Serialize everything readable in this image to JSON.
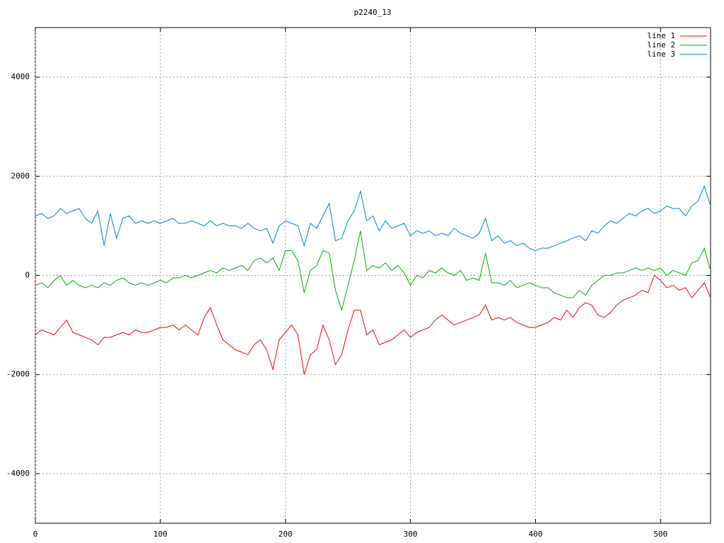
{
  "chart_data": {
    "type": "line",
    "title": "p2240_13",
    "x": [
      0,
      5,
      10,
      15,
      20,
      25,
      30,
      35,
      40,
      45,
      50,
      55,
      60,
      65,
      70,
      75,
      80,
      85,
      90,
      95,
      100,
      105,
      110,
      115,
      120,
      125,
      130,
      135,
      140,
      145,
      150,
      155,
      160,
      165,
      170,
      175,
      180,
      185,
      190,
      195,
      200,
      205,
      210,
      215,
      220,
      225,
      230,
      235,
      240,
      245,
      250,
      255,
      260,
      265,
      270,
      275,
      280,
      285,
      290,
      295,
      300,
      305,
      310,
      315,
      320,
      325,
      330,
      335,
      340,
      345,
      350,
      355,
      360,
      365,
      370,
      375,
      380,
      385,
      390,
      395,
      400,
      405,
      410,
      415,
      420,
      425,
      430,
      435,
      440,
      445,
      450,
      455,
      460,
      465,
      470,
      475,
      480,
      485,
      490,
      495,
      500,
      505,
      510,
      515,
      520,
      525,
      530,
      535,
      540
    ],
    "series": [
      {
        "name": "line 1",
        "color": "#ff0000",
        "values": [
          -1200,
          -1100,
          -1150,
          -1200,
          -1050,
          -900,
          -1150,
          -1200,
          -1250,
          -1300,
          -1400,
          -1250,
          -1250,
          -1200,
          -1150,
          -1200,
          -1100,
          -1150,
          -1150,
          -1100,
          -1050,
          -1050,
          -1000,
          -1100,
          -1000,
          -1100,
          -1200,
          -850,
          -650,
          -1000,
          -1300,
          -1400,
          -1500,
          -1550,
          -1600,
          -1400,
          -1300,
          -1500,
          -1900,
          -1300,
          -1150,
          -1000,
          -1200,
          -2000,
          -1600,
          -1500,
          -1000,
          -1300,
          -1800,
          -1600,
          -1100,
          -700,
          -700,
          -1200,
          -1100,
          -1400,
          -1350,
          -1300,
          -1200,
          -1100,
          -1250,
          -1150,
          -1100,
          -1050,
          -900,
          -800,
          -900,
          -1000,
          -950,
          -900,
          -850,
          -800,
          -600,
          -900,
          -850,
          -900,
          -850,
          -950,
          -1000,
          -1050,
          -1050,
          -1000,
          -950,
          -850,
          -900,
          -700,
          -850,
          -650,
          -550,
          -600,
          -800,
          -850,
          -750,
          -600,
          -500,
          -450,
          -400,
          -300,
          -350,
          0,
          -100,
          -250,
          -200,
          -300,
          -250,
          -450,
          -300,
          -150,
          -450
        ]
      },
      {
        "name": "line 2",
        "color": "#00b000",
        "values": [
          -200,
          -150,
          -250,
          -100,
          0,
          -200,
          -100,
          -200,
          -250,
          -200,
          -250,
          -150,
          -200,
          -100,
          -50,
          -150,
          -200,
          -150,
          -200,
          -150,
          -100,
          -150,
          -50,
          -50,
          0,
          -50,
          0,
          50,
          100,
          50,
          150,
          100,
          150,
          200,
          100,
          300,
          350,
          250,
          350,
          100,
          500,
          500,
          300,
          -350,
          100,
          200,
          500,
          450,
          -300,
          -700,
          -200,
          300,
          900,
          100,
          200,
          150,
          250,
          100,
          200,
          50,
          -200,
          0,
          -50,
          100,
          50,
          150,
          50,
          0,
          100,
          -100,
          -50,
          -100,
          450,
          -150,
          -150,
          -200,
          -100,
          -250,
          -200,
          -150,
          -200,
          -250,
          -250,
          -350,
          -400,
          -450,
          -450,
          -300,
          -400,
          -200,
          -100,
          0,
          0,
          50,
          50,
          100,
          150,
          100,
          150,
          100,
          150,
          0,
          100,
          50,
          0,
          250,
          300,
          550,
          100
        ]
      },
      {
        "name": "line 3",
        "color": "#0080e0",
        "values": [
          1200,
          1250,
          1150,
          1200,
          1350,
          1250,
          1300,
          1350,
          1150,
          1050,
          1300,
          600,
          1250,
          750,
          1150,
          1200,
          1050,
          1100,
          1050,
          1100,
          1050,
          1100,
          1150,
          1050,
          1050,
          1100,
          1050,
          1000,
          1100,
          1000,
          1050,
          1000,
          1000,
          950,
          1050,
          950,
          900,
          950,
          650,
          1000,
          1100,
          1050,
          1000,
          600,
          1050,
          950,
          1200,
          1450,
          700,
          750,
          1100,
          1300,
          1700,
          1100,
          1200,
          900,
          1100,
          950,
          1000,
          1050,
          800,
          900,
          850,
          900,
          800,
          850,
          800,
          950,
          850,
          800,
          750,
          850,
          1150,
          700,
          800,
          650,
          700,
          600,
          650,
          550,
          500,
          550,
          550,
          600,
          650,
          700,
          750,
          800,
          700,
          900,
          850,
          1000,
          1100,
          1050,
          1150,
          1250,
          1200,
          1300,
          1350,
          1250,
          1300,
          1400,
          1350,
          1350,
          1200,
          1400,
          1500,
          1800,
          1400
        ]
      }
    ],
    "xlim": [
      0,
      540
    ],
    "ylim": [
      -5000,
      5000
    ],
    "xticks": [
      0,
      100,
      200,
      300,
      400,
      500
    ],
    "yticks": [
      -4000,
      -2000,
      0,
      2000,
      4000
    ],
    "grid": true,
    "legend": "top-right"
  }
}
